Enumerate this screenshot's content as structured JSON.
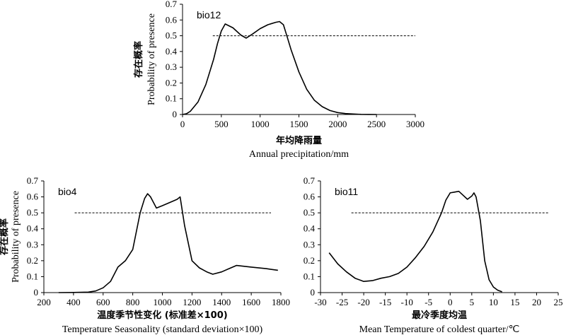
{
  "chart_data": [
    {
      "type": "line",
      "title": "bio12",
      "ylabel_cn": "存在概率",
      "ylabel": "Probability of presence",
      "xlabel_cn": "年均降雨量",
      "xlabel": "Annual precipitation/mm",
      "xlim": [
        0,
        3000
      ],
      "ylim": [
        0,
        0.7
      ],
      "xticks": [
        "0",
        "500",
        "1000",
        "1500",
        "2000",
        "2500",
        "3000"
      ],
      "yticks": [
        "0",
        "0.1",
        "0.2",
        "0.3",
        "0.4",
        "0.5",
        "0.6",
        "0.7"
      ],
      "threshold": 0.5,
      "x": [
        0,
        50,
        100,
        200,
        300,
        400,
        450,
        500,
        550,
        650,
        750,
        820,
        900,
        1000,
        1100,
        1200,
        1250,
        1300,
        1350,
        1400,
        1500,
        1600,
        1700,
        1800,
        1900,
        2000,
        2100,
        2200,
        2300,
        2400,
        2500
      ],
      "y": [
        0,
        0.005,
        0.02,
        0.08,
        0.19,
        0.35,
        0.45,
        0.53,
        0.575,
        0.55,
        0.505,
        0.485,
        0.51,
        0.545,
        0.57,
        0.585,
        0.59,
        0.57,
        0.49,
        0.41,
        0.27,
        0.16,
        0.09,
        0.05,
        0.025,
        0.012,
        0.006,
        0.003,
        0.001,
        0.0005,
        0
      ]
    },
    {
      "type": "line",
      "title": "bio4",
      "ylabel_cn": "存在概率",
      "ylabel": "Probability of presence",
      "xlabel_cn": "温度季节性变化 (标准差×100)",
      "xlabel": "Temperature Seasonality (standard deviation×100)",
      "xlim": [
        200,
        1800
      ],
      "ylim": [
        0,
        0.7
      ],
      "xticks": [
        "200",
        "400",
        "600",
        "800",
        "1000",
        "1200",
        "1400",
        "1600",
        "1800"
      ],
      "yticks": [
        "0",
        "0.1",
        "0.2",
        "0.3",
        "0.4",
        "0.5",
        "0.6",
        "0.7"
      ],
      "threshold": 0.5,
      "x": [
        300,
        400,
        500,
        550,
        600,
        650,
        700,
        750,
        800,
        850,
        880,
        900,
        920,
        960,
        1000,
        1050,
        1100,
        1120,
        1150,
        1200,
        1250,
        1300,
        1340,
        1400,
        1450,
        1500,
        1600,
        1700,
        1780
      ],
      "y": [
        0,
        0.001,
        0.003,
        0.01,
        0.03,
        0.07,
        0.16,
        0.2,
        0.27,
        0.5,
        0.59,
        0.62,
        0.6,
        0.53,
        0.545,
        0.565,
        0.585,
        0.6,
        0.42,
        0.2,
        0.155,
        0.13,
        0.115,
        0.13,
        0.15,
        0.17,
        0.16,
        0.15,
        0.14
      ]
    },
    {
      "type": "line",
      "title": "bio11",
      "ylabel_cn": "存在概率",
      "ylabel": "Probability of presence",
      "xlabel_cn": "最冷季度均温",
      "xlabel": "Mean Temperature of coldest quarter/℃",
      "xlim": [
        -30,
        25
      ],
      "ylim": [
        0,
        0.7
      ],
      "xticks": [
        "-30",
        "-25",
        "-20",
        "-15",
        "-10",
        "-5",
        "0",
        "5",
        "10",
        "15",
        "20",
        "25"
      ],
      "yticks": [
        "0",
        "0.1",
        "0.2",
        "0.3",
        "0.4",
        "0.5",
        "0.6",
        "0.7"
      ],
      "threshold": 0.5,
      "x": [
        -28,
        -26,
        -24,
        -22,
        -20,
        -18,
        -16,
        -14,
        -12,
        -10,
        -8,
        -6,
        -4,
        -2,
        -1,
        0,
        1,
        2,
        3,
        4,
        5,
        5.5,
        6,
        7,
        8,
        9,
        10,
        11,
        12
      ],
      "y": [
        0.25,
        0.18,
        0.13,
        0.09,
        0.07,
        0.075,
        0.09,
        0.1,
        0.12,
        0.16,
        0.22,
        0.29,
        0.38,
        0.5,
        0.58,
        0.625,
        0.63,
        0.635,
        0.61,
        0.585,
        0.605,
        0.625,
        0.6,
        0.45,
        0.2,
        0.08,
        0.035,
        0.015,
        0.005
      ]
    }
  ]
}
